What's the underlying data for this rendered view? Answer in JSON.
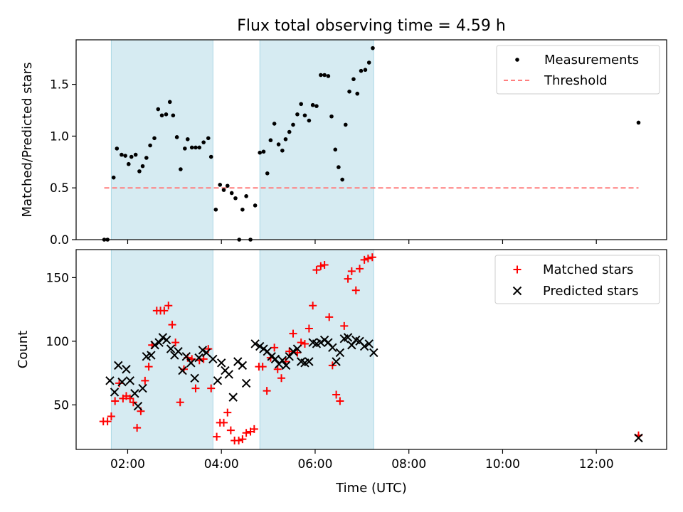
{
  "chart_data": [
    {
      "type": "scatter",
      "title": "Flux total observing time = 4.59 h",
      "ylabel": "Matched/Predicted stars",
      "xlabel": "",
      "x_unit": "hours (UTC)",
      "xlim": [
        0.9,
        13.5
      ],
      "ylim": [
        0.0,
        1.93
      ],
      "yticks": [
        0.0,
        0.5,
        1.0,
        1.5
      ],
      "ytick_labels": [
        "0.0",
        "0.5",
        "1.0",
        "1.5"
      ],
      "shaded_spans": [
        [
          1.65,
          3.82
        ],
        [
          4.82,
          7.25
        ]
      ],
      "threshold": {
        "value": 0.5,
        "x_range": [
          1.5,
          12.9
        ],
        "color": "#ff7f7f"
      },
      "legend_position": "upper right",
      "series": [
        {
          "name": "Measurements",
          "color": "#000000",
          "marker": "dot",
          "points": [
            [
              1.5,
              0.0
            ],
            [
              1.57,
              0.0
            ],
            [
              1.7,
              0.6
            ],
            [
              1.77,
              0.88
            ],
            [
              1.87,
              0.82
            ],
            [
              1.95,
              0.81
            ],
            [
              2.02,
              0.73
            ],
            [
              2.08,
              0.8
            ],
            [
              2.17,
              0.82
            ],
            [
              2.25,
              0.66
            ],
            [
              2.32,
              0.71
            ],
            [
              2.4,
              0.79
            ],
            [
              2.48,
              0.91
            ],
            [
              2.57,
              0.98
            ],
            [
              2.65,
              1.26
            ],
            [
              2.73,
              1.2
            ],
            [
              2.82,
              1.21
            ],
            [
              2.9,
              1.33
            ],
            [
              2.97,
              1.2
            ],
            [
              3.05,
              0.99
            ],
            [
              3.13,
              0.68
            ],
            [
              3.22,
              0.88
            ],
            [
              3.28,
              0.97
            ],
            [
              3.37,
              0.89
            ],
            [
              3.45,
              0.89
            ],
            [
              3.53,
              0.89
            ],
            [
              3.62,
              0.94
            ],
            [
              3.72,
              0.98
            ],
            [
              3.78,
              0.8
            ],
            [
              3.88,
              0.29
            ],
            [
              3.97,
              0.53
            ],
            [
              4.05,
              0.48
            ],
            [
              4.13,
              0.52
            ],
            [
              4.22,
              0.45
            ],
            [
              4.3,
              0.4
            ],
            [
              4.38,
              0.0
            ],
            [
              4.45,
              0.29
            ],
            [
              4.53,
              0.42
            ],
            [
              4.62,
              0.0
            ],
            [
              4.72,
              0.33
            ],
            [
              4.82,
              0.84
            ],
            [
              4.9,
              0.85
            ],
            [
              4.98,
              0.64
            ],
            [
              5.05,
              0.96
            ],
            [
              5.13,
              1.12
            ],
            [
              5.22,
              0.92
            ],
            [
              5.3,
              0.86
            ],
            [
              5.37,
              0.97
            ],
            [
              5.45,
              1.04
            ],
            [
              5.53,
              1.11
            ],
            [
              5.62,
              1.21
            ],
            [
              5.7,
              1.31
            ],
            [
              5.78,
              1.2
            ],
            [
              5.87,
              1.15
            ],
            [
              5.95,
              1.3
            ],
            [
              6.03,
              1.29
            ],
            [
              6.12,
              1.59
            ],
            [
              6.2,
              1.59
            ],
            [
              6.28,
              1.58
            ],
            [
              6.35,
              1.19
            ],
            [
              6.43,
              0.87
            ],
            [
              6.5,
              0.7
            ],
            [
              6.58,
              0.58
            ],
            [
              6.65,
              1.11
            ],
            [
              6.73,
              1.43
            ],
            [
              6.82,
              1.55
            ],
            [
              6.9,
              1.41
            ],
            [
              6.98,
              1.63
            ],
            [
              7.07,
              1.64
            ],
            [
              7.15,
              1.71
            ],
            [
              7.23,
              1.85
            ],
            [
              12.9,
              1.13
            ]
          ]
        },
        {
          "name": "Threshold",
          "color": "#ff7f7f",
          "line_style": "dashed"
        }
      ]
    },
    {
      "type": "scatter",
      "title": "",
      "xlabel": "Time (UTC)",
      "ylabel": "Count",
      "x_unit": "hours (UTC)",
      "xlim": [
        0.9,
        13.5
      ],
      "ylim": [
        15,
        172
      ],
      "xticks": [
        2,
        4,
        6,
        8,
        10,
        12
      ],
      "xtick_labels": [
        "02:00",
        "04:00",
        "06:00",
        "08:00",
        "10:00",
        "12:00"
      ],
      "yticks": [
        50,
        100,
        150
      ],
      "ytick_labels": [
        "50",
        "100",
        "150"
      ],
      "shaded_spans": [
        [
          1.65,
          3.82
        ],
        [
          4.82,
          7.25
        ]
      ],
      "legend_position": "upper right",
      "series": [
        {
          "name": "Matched stars",
          "color": "#ff0000",
          "marker": "plus",
          "points": [
            [
              1.48,
              37
            ],
            [
              1.57,
              37
            ],
            [
              1.65,
              41
            ],
            [
              1.73,
              53
            ],
            [
              1.82,
              67
            ],
            [
              1.9,
              55
            ],
            [
              1.97,
              57
            ],
            [
              2.05,
              55
            ],
            [
              2.12,
              52
            ],
            [
              2.2,
              32
            ],
            [
              2.28,
              45
            ],
            [
              2.37,
              69
            ],
            [
              2.45,
              80
            ],
            [
              2.52,
              97
            ],
            [
              2.62,
              124
            ],
            [
              2.7,
              124
            ],
            [
              2.78,
              124
            ],
            [
              2.87,
              128
            ],
            [
              2.95,
              113
            ],
            [
              3.02,
              99
            ],
            [
              3.12,
              52
            ],
            [
              3.2,
              78
            ],
            [
              3.28,
              87
            ],
            [
              3.37,
              86
            ],
            [
              3.45,
              63
            ],
            [
              3.53,
              85
            ],
            [
              3.62,
              86
            ],
            [
              3.72,
              94
            ],
            [
              3.78,
              63
            ],
            [
              3.9,
              25
            ],
            [
              3.97,
              36
            ],
            [
              4.05,
              36
            ],
            [
              4.13,
              44
            ],
            [
              4.2,
              30
            ],
            [
              4.28,
              22
            ],
            [
              4.37,
              22
            ],
            [
              4.45,
              23
            ],
            [
              4.53,
              28
            ],
            [
              4.62,
              29
            ],
            [
              4.7,
              31
            ],
            [
              4.8,
              80
            ],
            [
              4.88,
              80
            ],
            [
              4.97,
              61
            ],
            [
              5.05,
              87
            ],
            [
              5.13,
              95
            ],
            [
              5.2,
              78
            ],
            [
              5.28,
              71
            ],
            [
              5.37,
              84
            ],
            [
              5.45,
              92
            ],
            [
              5.53,
              106
            ],
            [
              5.62,
              91
            ],
            [
              5.7,
              99
            ],
            [
              5.78,
              98
            ],
            [
              5.87,
              110
            ],
            [
              5.95,
              128
            ],
            [
              6.03,
              156
            ],
            [
              6.12,
              159
            ],
            [
              6.2,
              160
            ],
            [
              6.3,
              119
            ],
            [
              6.37,
              81
            ],
            [
              6.45,
              58
            ],
            [
              6.53,
              53
            ],
            [
              6.62,
              112
            ],
            [
              6.7,
              149
            ],
            [
              6.78,
              155
            ],
            [
              6.87,
              140
            ],
            [
              6.95,
              157
            ],
            [
              7.05,
              164
            ],
            [
              7.13,
              165
            ],
            [
              7.22,
              166
            ],
            [
              12.9,
              26
            ]
          ]
        },
        {
          "name": "Predicted stars",
          "color": "#000000",
          "marker": "x",
          "points": [
            [
              1.62,
              69
            ],
            [
              1.72,
              60
            ],
            [
              1.8,
              81
            ],
            [
              1.88,
              68
            ],
            [
              1.97,
              78
            ],
            [
              2.05,
              69
            ],
            [
              2.15,
              59
            ],
            [
              2.22,
              49
            ],
            [
              2.32,
              63
            ],
            [
              2.4,
              88
            ],
            [
              2.5,
              89
            ],
            [
              2.58,
              97
            ],
            [
              2.67,
              99
            ],
            [
              2.75,
              103
            ],
            [
              2.83,
              101
            ],
            [
              2.92,
              94
            ],
            [
              3.0,
              89
            ],
            [
              3.08,
              92
            ],
            [
              3.17,
              77
            ],
            [
              3.25,
              88
            ],
            [
              3.35,
              83
            ],
            [
              3.43,
              71
            ],
            [
              3.52,
              87
            ],
            [
              3.6,
              93
            ],
            [
              3.68,
              91
            ],
            [
              3.82,
              86
            ],
            [
              3.92,
              69
            ],
            [
              4.0,
              83
            ],
            [
              4.08,
              77
            ],
            [
              4.16,
              74
            ],
            [
              4.25,
              56
            ],
            [
              4.35,
              84
            ],
            [
              4.45,
              81
            ],
            [
              4.53,
              67
            ],
            [
              4.72,
              98
            ],
            [
              4.82,
              96
            ],
            [
              4.9,
              94
            ],
            [
              4.98,
              92
            ],
            [
              5.07,
              88
            ],
            [
              5.15,
              86
            ],
            [
              5.23,
              82
            ],
            [
              5.3,
              85
            ],
            [
              5.38,
              81
            ],
            [
              5.45,
              88
            ],
            [
              5.53,
              92
            ],
            [
              5.62,
              94
            ],
            [
              5.7,
              84
            ],
            [
              5.78,
              83
            ],
            [
              5.87,
              84
            ],
            [
              5.95,
              99
            ],
            [
              6.03,
              98
            ],
            [
              6.12,
              99
            ],
            [
              6.2,
              101
            ],
            [
              6.28,
              99
            ],
            [
              6.37,
              95
            ],
            [
              6.45,
              84
            ],
            [
              6.53,
              91
            ],
            [
              6.62,
              102
            ],
            [
              6.7,
              103
            ],
            [
              6.78,
              97
            ],
            [
              6.87,
              101
            ],
            [
              6.95,
              100
            ],
            [
              7.05,
              96
            ],
            [
              7.15,
              98
            ],
            [
              7.25,
              91
            ],
            [
              12.9,
              24
            ]
          ]
        }
      ]
    }
  ]
}
